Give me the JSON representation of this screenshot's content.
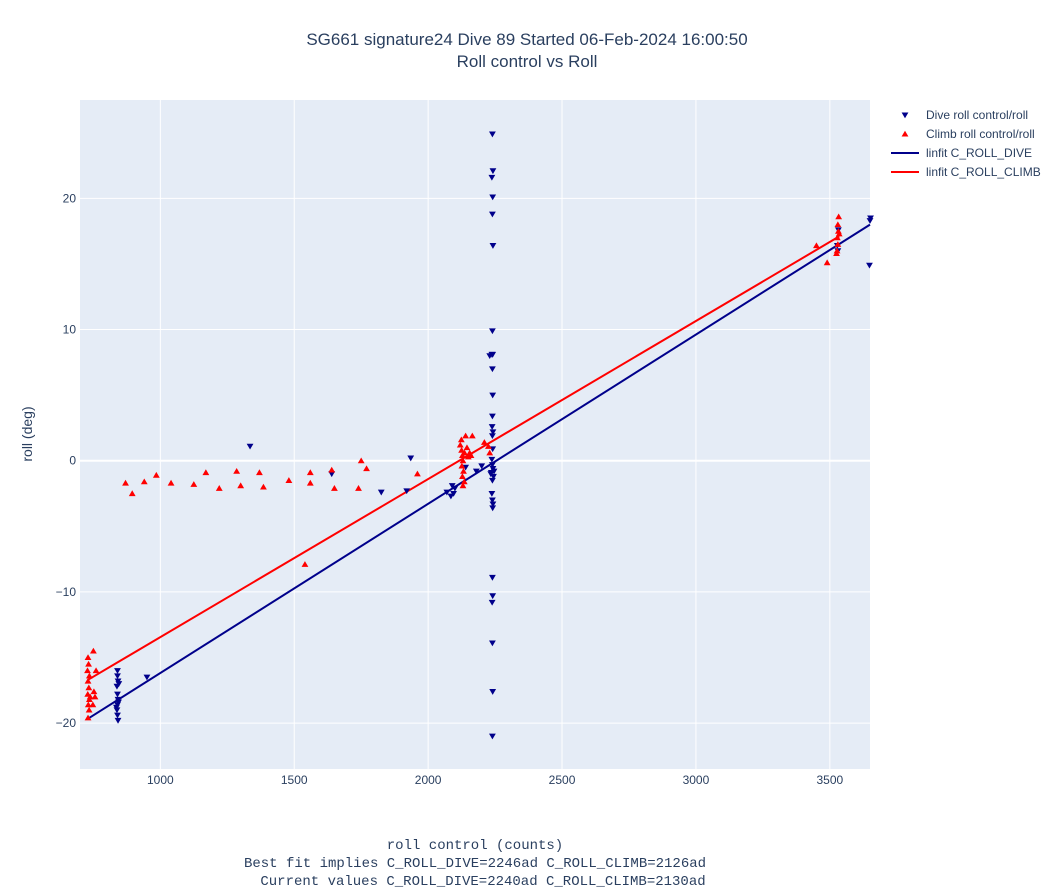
{
  "chart_data": {
    "type": "scatter",
    "title": "SG661 signature24 Dive 89 Started 06-Feb-2024 16:00:50",
    "subtitle": "Roll control vs Roll",
    "xlabel": "roll control (counts)",
    "xlabel_notes": [
      "Best fit implies C_ROLL_DIVE=2246ad C_ROLL_CLIMB=2126ad",
      "Current values C_ROLL_DIVE=2240ad C_ROLL_CLIMB=2130ad"
    ],
    "ylabel": "roll (deg)",
    "xlim": [
      700,
      3650
    ],
    "ylim": [
      -23.5,
      27.5
    ],
    "x_ticks": [
      1000,
      1500,
      2000,
      2500,
      3000,
      3500
    ],
    "y_ticks": [
      -20,
      -10,
      0,
      10,
      20
    ],
    "grid": true,
    "legend_position": "top-right outside",
    "series": [
      {
        "name": "Dive roll control/roll",
        "kind": "markers",
        "marker": "triangle-down",
        "color": "#00008b",
        "points": [
          [
            840,
            -16.0
          ],
          [
            840,
            -16.4
          ],
          [
            842,
            -16.8
          ],
          [
            838,
            -17.2
          ],
          [
            840,
            -17.8
          ],
          [
            842,
            -18.2
          ],
          [
            840,
            -18.6
          ],
          [
            838,
            -19.0
          ],
          [
            840,
            -19.4
          ],
          [
            842,
            -19.8
          ],
          [
            844,
            -18.4
          ],
          [
            836,
            -18.8
          ],
          [
            845,
            -17.0
          ],
          [
            950,
            -16.5
          ],
          [
            1335,
            1.1
          ],
          [
            1640,
            -1.0
          ],
          [
            1825,
            -2.4
          ],
          [
            1920,
            -2.3
          ],
          [
            1935,
            0.2
          ],
          [
            2070,
            -2.4
          ],
          [
            2085,
            -2.7
          ],
          [
            2090,
            -1.9
          ],
          [
            2095,
            -2.5
          ],
          [
            2100,
            -2.1
          ],
          [
            2140,
            -0.5
          ],
          [
            2180,
            -0.8
          ],
          [
            2200,
            -0.4
          ],
          [
            2240,
            24.9
          ],
          [
            2242,
            22.1
          ],
          [
            2238,
            21.6
          ],
          [
            2241,
            20.1
          ],
          [
            2240,
            18.8
          ],
          [
            2242,
            16.4
          ],
          [
            2240,
            9.9
          ],
          [
            2238,
            8.1
          ],
          [
            2241,
            8.1
          ],
          [
            2230,
            8.0
          ],
          [
            2240,
            7.0
          ],
          [
            2241,
            5.0
          ],
          [
            2240,
            3.4
          ],
          [
            2239,
            2.6
          ],
          [
            2242,
            2.2
          ],
          [
            2240,
            1.9
          ],
          [
            2241,
            0.9
          ],
          [
            2238,
            0.1
          ],
          [
            2240,
            -0.3
          ],
          [
            2242,
            -0.6
          ],
          [
            2236,
            -0.9
          ],
          [
            2244,
            -1.2
          ],
          [
            2240,
            -1.5
          ],
          [
            2238,
            -2.5
          ],
          [
            2240,
            -3.0
          ],
          [
            2241,
            -3.6
          ],
          [
            2242,
            -3.3
          ],
          [
            2246,
            -0.8
          ],
          [
            2234,
            -1.0
          ],
          [
            2240,
            -8.9
          ],
          [
            2241,
            -10.3
          ],
          [
            2239,
            -10.8
          ],
          [
            2240,
            -13.9
          ],
          [
            2241,
            -17.6
          ],
          [
            2240,
            -21.0
          ],
          [
            3530,
            16.0
          ],
          [
            3528,
            16.4
          ],
          [
            3532,
            17.6
          ],
          [
            3650,
            18.3
          ],
          [
            3652,
            18.5
          ],
          [
            3648,
            14.9
          ]
        ]
      },
      {
        "name": "Climb roll control/roll",
        "kind": "markers",
        "marker": "triangle-up",
        "color": "#ff0000",
        "points": [
          [
            730,
            -15.0
          ],
          [
            732,
            -15.5
          ],
          [
            728,
            -16.0
          ],
          [
            735,
            -16.4
          ],
          [
            730,
            -16.8
          ],
          [
            733,
            -17.3
          ],
          [
            729,
            -17.8
          ],
          [
            735,
            -18.2
          ],
          [
            731,
            -18.6
          ],
          [
            734,
            -19.0
          ],
          [
            730,
            -19.6
          ],
          [
            738,
            -18.0
          ],
          [
            750,
            -14.5
          ],
          [
            752,
            -17.6
          ],
          [
            756,
            -18.0
          ],
          [
            760,
            -16.0
          ],
          [
            748,
            -18.6
          ],
          [
            870,
            -1.7
          ],
          [
            895,
            -2.5
          ],
          [
            940,
            -1.6
          ],
          [
            985,
            -1.1
          ],
          [
            1040,
            -1.7
          ],
          [
            1125,
            -1.8
          ],
          [
            1170,
            -0.9
          ],
          [
            1220,
            -2.1
          ],
          [
            1285,
            -0.8
          ],
          [
            1300,
            -1.9
          ],
          [
            1370,
            -0.9
          ],
          [
            1385,
            -2.0
          ],
          [
            1480,
            -1.5
          ],
          [
            1540,
            -7.9
          ],
          [
            1560,
            -0.9
          ],
          [
            1560,
            -1.7
          ],
          [
            1640,
            -0.7
          ],
          [
            1650,
            -2.1
          ],
          [
            1740,
            -2.1
          ],
          [
            1750,
            -0.0
          ],
          [
            1770,
            -0.6
          ],
          [
            1960,
            -1.0
          ],
          [
            2120,
            1.2
          ],
          [
            2125,
            0.8
          ],
          [
            2128,
            0.4
          ],
          [
            2130,
            0.0
          ],
          [
            2126,
            -0.4
          ],
          [
            2132,
            -0.8
          ],
          [
            2128,
            -1.2
          ],
          [
            2135,
            -1.6
          ],
          [
            2124,
            1.6
          ],
          [
            2136,
            0.6
          ],
          [
            2140,
            1.9
          ],
          [
            2145,
            1.0
          ],
          [
            2150,
            0.3
          ],
          [
            2155,
            0.6
          ],
          [
            2160,
            0.4
          ],
          [
            2130,
            -1.9
          ],
          [
            2165,
            1.9
          ],
          [
            2210,
            1.4
          ],
          [
            2225,
            1.1
          ],
          [
            2230,
            0.6
          ],
          [
            3450,
            16.4
          ],
          [
            3490,
            15.1
          ],
          [
            3525,
            15.8
          ],
          [
            3530,
            16.5
          ],
          [
            3528,
            17.0
          ],
          [
            3532,
            17.5
          ],
          [
            3530,
            18.0
          ],
          [
            3533,
            18.6
          ],
          [
            3527,
            16.0
          ],
          [
            3535,
            17.3
          ]
        ]
      },
      {
        "name": "linfit C_ROLL_DIVE",
        "kind": "line",
        "color": "#00008b",
        "points": [
          [
            735,
            -19.6
          ],
          [
            3650,
            18.0
          ]
        ]
      },
      {
        "name": "linfit C_ROLL_CLIMB",
        "kind": "line",
        "color": "#ff0000",
        "points": [
          [
            730,
            -16.7
          ],
          [
            3535,
            17.1
          ]
        ]
      }
    ]
  }
}
